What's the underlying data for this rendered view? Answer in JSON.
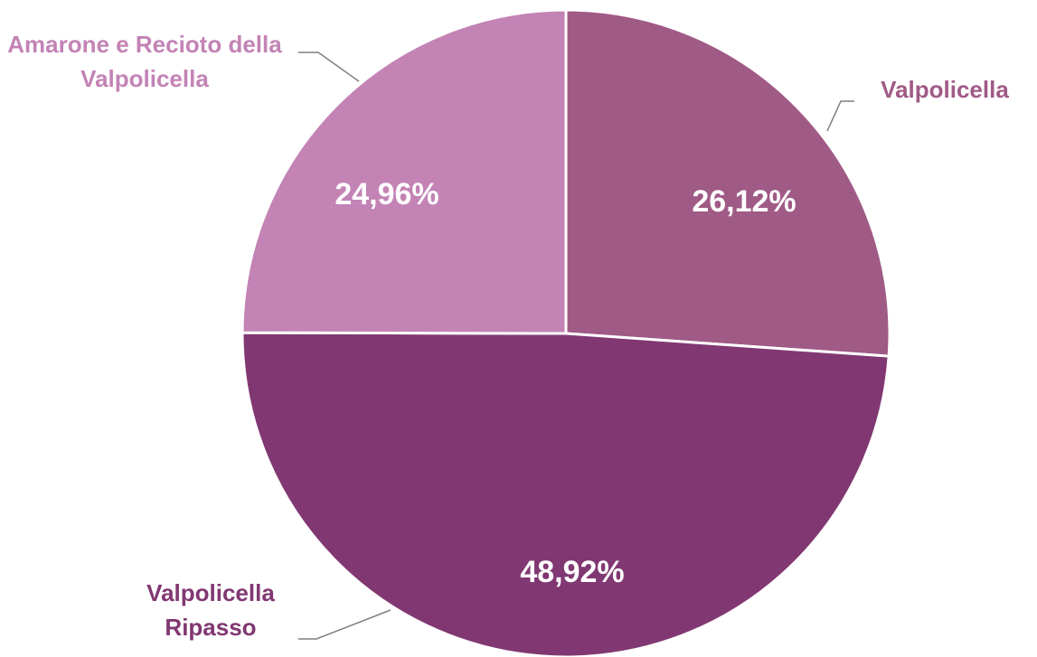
{
  "chart_data": {
    "type": "pie",
    "categories": [
      "Valpolicella",
      "Valpolicella Ripasso",
      "Amarone e Recioto della Valpolicella"
    ],
    "values": [
      26.12,
      48.92,
      24.96
    ],
    "value_labels": [
      "26,12%",
      "48,92%",
      "24,96%"
    ],
    "colors": [
      "#a05a86",
      "#813872",
      "#c383b5"
    ]
  }
}
